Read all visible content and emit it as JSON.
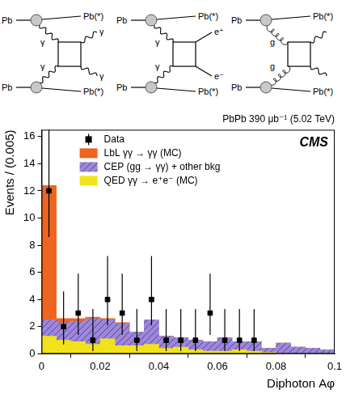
{
  "diagrams": [
    {
      "in_top": "Pb",
      "out_top": "Pb(*)",
      "in_bottom": "Pb",
      "out_bottom": "Pb(*)",
      "exchange_top": "γ",
      "exchange_bottom": "γ",
      "final_top": "γ",
      "final_bottom": "γ"
    },
    {
      "in_top": "Pb",
      "out_top": "Pb(*)",
      "in_bottom": "Pb",
      "out_bottom": "Pb(*)",
      "exchange_top": "γ",
      "exchange_bottom": "γ",
      "final_top": "e⁺",
      "final_bottom": "e⁻"
    },
    {
      "in_top": "Pb",
      "out_top": "Pb(*)",
      "in_bottom": "Pb",
      "out_bottom": "Pb(*)",
      "exchange_top": "g",
      "exchange_bottom": "g"
    }
  ],
  "chart_data": {
    "type": "histogram",
    "title": "PbPb 390 μb⁻¹ (5.02 TeV)",
    "annotation": "CMS",
    "x_label": "Diphoton Aφ",
    "y_label": "Events / (0.005)",
    "bins": [
      0,
      0.005,
      0.01,
      0.015,
      0.02,
      0.025,
      0.03,
      0.035,
      0.04,
      0.045,
      0.05,
      0.055,
      0.06,
      0.065,
      0.07,
      0.075,
      0.08,
      0.085,
      0.09,
      0.095,
      0.1
    ],
    "stacked": true,
    "grid": false,
    "legend": "top",
    "xlim": [
      0,
      0.1
    ],
    "xticks": [
      0,
      0.02,
      0.04,
      0.06,
      0.08,
      0.1
    ],
    "ylim": [
      0,
      16.5
    ],
    "yticks": [
      0,
      2,
      4,
      6,
      8,
      10,
      12,
      14,
      16
    ],
    "series": [
      {
        "name": "Data",
        "type": "scatter",
        "marker": "square",
        "color": "#000000",
        "x": [
          0.0025,
          0.0075,
          0.0125,
          0.0175,
          0.0225,
          0.0275,
          0.0325,
          0.0375,
          0.0425,
          0.0475,
          0.0525,
          0.0575,
          0.0625,
          0.0675,
          0.0725
        ],
        "values": [
          12,
          2,
          3,
          1,
          4,
          3,
          1,
          4,
          1,
          1,
          1,
          3,
          1,
          1,
          1
        ],
        "yerr_low": [
          3.4,
          1.3,
          1.6,
          0.8,
          1.9,
          1.6,
          0.8,
          1.9,
          0.8,
          0.8,
          0.8,
          1.6,
          0.8,
          0.8,
          0.8
        ],
        "yerr_high": [
          4.6,
          2.6,
          2.9,
          2.3,
          3.2,
          2.9,
          2.3,
          3.2,
          2.3,
          2.3,
          2.3,
          2.9,
          2.3,
          2.3,
          2.3
        ]
      },
      {
        "name": "LbL γγ → γγ (MC)",
        "type": "bar",
        "color": "#ee6420",
        "values": [
          9.9,
          0.3,
          0.2,
          0.1,
          0.1,
          0.1,
          0,
          0,
          0,
          0,
          0,
          0,
          0,
          0,
          0,
          0,
          0,
          0,
          0,
          0
        ]
      },
      {
        "name": "CEP (gg → γγ) + other bkg",
        "type": "bar",
        "color": "#9c88d8",
        "values": [
          1.2,
          1.3,
          1.5,
          1.9,
          1.4,
          1.6,
          1.0,
          1.8,
          0.9,
          0.7,
          0.7,
          0.7,
          1.0,
          0.6,
          0.7,
          0.3,
          0.8,
          0.5,
          0.4,
          0.3
        ]
      },
      {
        "name": "QED γγ → e⁺e⁻ (MC)",
        "type": "bar",
        "color": "#f2e21c",
        "values": [
          1.3,
          1.0,
          0.9,
          0.7,
          1.1,
          0.6,
          0.6,
          0.7,
          0.4,
          0.5,
          0.3,
          0.2,
          0.2,
          0.3,
          0.2,
          0.1,
          0,
          0,
          0,
          0
        ]
      }
    ]
  }
}
